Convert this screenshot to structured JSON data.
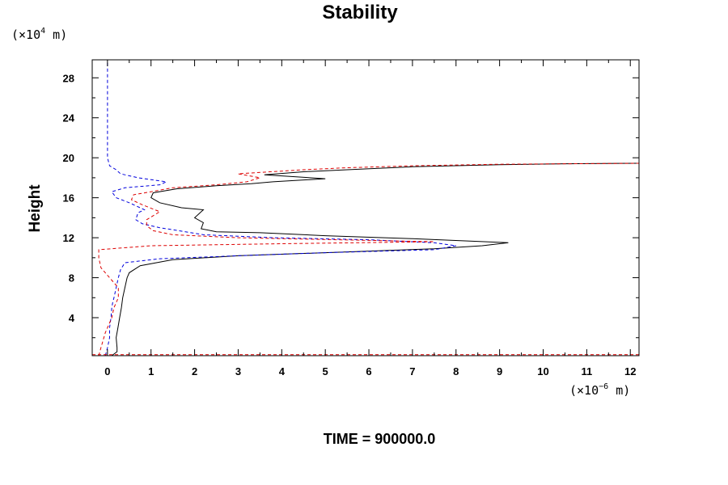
{
  "chart_data": {
    "type": "line",
    "title": "Stability",
    "xlabel": "",
    "ylabel": "Height",
    "x_unit": {
      "prefix": "(×10",
      "exp": "−6",
      "suffix": " m)"
    },
    "y_unit": {
      "prefix": "(×10",
      "exp": "4",
      "suffix": " m)"
    },
    "xlim": [
      -0.35,
      12.2
    ],
    "ylim": [
      0.2,
      29.8
    ],
    "xticks": [
      0,
      1,
      2,
      3,
      4,
      5,
      6,
      7,
      8,
      9,
      10,
      11,
      12
    ],
    "yticks": [
      4,
      8,
      12,
      16,
      20,
      24,
      28
    ],
    "xtick_labels": [
      "0",
      "1",
      "2",
      "3",
      "4",
      "5",
      "6",
      "7",
      "8",
      "9",
      "10",
      "11",
      "12"
    ],
    "ytick_labels": [
      "4",
      "8",
      "12",
      "16",
      "20",
      "24",
      "28"
    ],
    "grid": false,
    "series": [
      {
        "name": "black-solid",
        "color": "#000000",
        "dash": "solid",
        "points": [
          [
            0.1,
            0.2
          ],
          [
            0.22,
            0.6
          ],
          [
            0.22,
            1.0
          ],
          [
            0.2,
            2.0
          ],
          [
            0.24,
            3.0
          ],
          [
            0.28,
            4.0
          ],
          [
            0.32,
            5.0
          ],
          [
            0.35,
            6.0
          ],
          [
            0.4,
            7.0
          ],
          [
            0.45,
            8.0
          ],
          [
            0.5,
            8.5
          ],
          [
            0.75,
            9.2
          ],
          [
            1.5,
            9.8
          ],
          [
            3.0,
            10.2
          ],
          [
            5.0,
            10.5
          ],
          [
            7.5,
            10.9
          ],
          [
            8.6,
            11.2
          ],
          [
            9.2,
            11.5
          ],
          [
            7.0,
            11.9
          ],
          [
            5.0,
            12.2
          ],
          [
            3.5,
            12.5
          ],
          [
            2.5,
            12.6
          ],
          [
            2.15,
            12.9
          ],
          [
            2.2,
            13.5
          ],
          [
            2.0,
            14.0
          ],
          [
            2.2,
            14.8
          ],
          [
            1.7,
            15.0
          ],
          [
            1.2,
            15.5
          ],
          [
            1.0,
            16.0
          ],
          [
            1.05,
            16.5
          ],
          [
            1.6,
            16.9
          ],
          [
            2.5,
            17.2
          ],
          [
            3.3,
            17.4
          ],
          [
            3.8,
            17.6
          ],
          [
            5.0,
            17.9
          ],
          [
            3.6,
            18.3
          ],
          [
            4.5,
            18.6
          ],
          [
            5.5,
            18.8
          ],
          [
            7.0,
            19.1
          ],
          [
            9.0,
            19.3
          ],
          [
            10.5,
            19.4
          ],
          [
            12.2,
            19.45
          ]
        ]
      },
      {
        "name": "blue-dashed",
        "color": "#0000dd",
        "dash": "dashed",
        "points": [
          [
            -0.05,
            0.2
          ],
          [
            0.0,
            1.0
          ],
          [
            0.05,
            2.0
          ],
          [
            0.05,
            3.0
          ],
          [
            0.08,
            4.0
          ],
          [
            0.1,
            5.0
          ],
          [
            0.12,
            5.5
          ],
          [
            0.15,
            6.0
          ],
          [
            0.2,
            7.0
          ],
          [
            0.25,
            8.0
          ],
          [
            0.3,
            8.8
          ],
          [
            0.4,
            9.5
          ],
          [
            1.2,
            9.9
          ],
          [
            3.0,
            10.2
          ],
          [
            5.0,
            10.5
          ],
          [
            7.5,
            10.8
          ],
          [
            8.0,
            11.2
          ],
          [
            7.5,
            11.5
          ],
          [
            6.0,
            11.8
          ],
          [
            3.8,
            12.0
          ],
          [
            2.2,
            12.3
          ],
          [
            1.5,
            12.8
          ],
          [
            1.2,
            13.0
          ],
          [
            0.8,
            13.4
          ],
          [
            0.65,
            13.8
          ],
          [
            0.7,
            14.5
          ],
          [
            0.85,
            14.8
          ],
          [
            0.5,
            15.5
          ],
          [
            0.2,
            16.0
          ],
          [
            0.1,
            16.6
          ],
          [
            0.4,
            17.0
          ],
          [
            1.2,
            17.3
          ],
          [
            1.35,
            17.6
          ],
          [
            0.7,
            18.0
          ],
          [
            0.3,
            18.4
          ],
          [
            0.2,
            18.8
          ],
          [
            0.05,
            19.2
          ],
          [
            0.0,
            20.0
          ],
          [
            0.0,
            24.0
          ],
          [
            0.0,
            29.8
          ]
        ]
      },
      {
        "name": "red-dashed",
        "color": "#dd0000",
        "dash": "dashed",
        "points": [
          [
            -0.2,
            0.2
          ],
          [
            -0.15,
            1.0
          ],
          [
            -0.05,
            2.5
          ],
          [
            0.1,
            4.0
          ],
          [
            0.15,
            5.0
          ],
          [
            0.25,
            6.0
          ],
          [
            0.25,
            7.0
          ],
          [
            0.05,
            8.0
          ],
          [
            -0.15,
            9.0
          ],
          [
            -0.2,
            10.0
          ],
          [
            -0.2,
            10.8
          ],
          [
            1.0,
            11.2
          ],
          [
            4.0,
            11.4
          ],
          [
            7.5,
            11.6
          ],
          [
            3.0,
            12.0
          ],
          [
            1.5,
            12.3
          ],
          [
            1.05,
            12.7
          ],
          [
            0.9,
            13.2
          ],
          [
            0.9,
            13.8
          ],
          [
            1.2,
            14.6
          ],
          [
            0.8,
            15.3
          ],
          [
            0.55,
            15.8
          ],
          [
            0.6,
            16.3
          ],
          [
            1.0,
            16.6
          ],
          [
            1.5,
            17.0
          ],
          [
            2.5,
            17.3
          ],
          [
            3.2,
            17.6
          ],
          [
            3.5,
            18.0
          ],
          [
            3.0,
            18.4
          ],
          [
            4.5,
            18.8
          ],
          [
            5.5,
            19.0
          ],
          [
            7.0,
            19.2
          ],
          [
            9.0,
            19.35
          ],
          [
            12.2,
            19.45
          ]
        ]
      },
      {
        "name": "red-baseline",
        "color": "#dd0000",
        "dash": "dashed",
        "points": [
          [
            -0.35,
            0.3
          ],
          [
            12.2,
            0.3
          ]
        ]
      }
    ]
  },
  "footer": {
    "time_label": "TIME = 900000.0"
  }
}
